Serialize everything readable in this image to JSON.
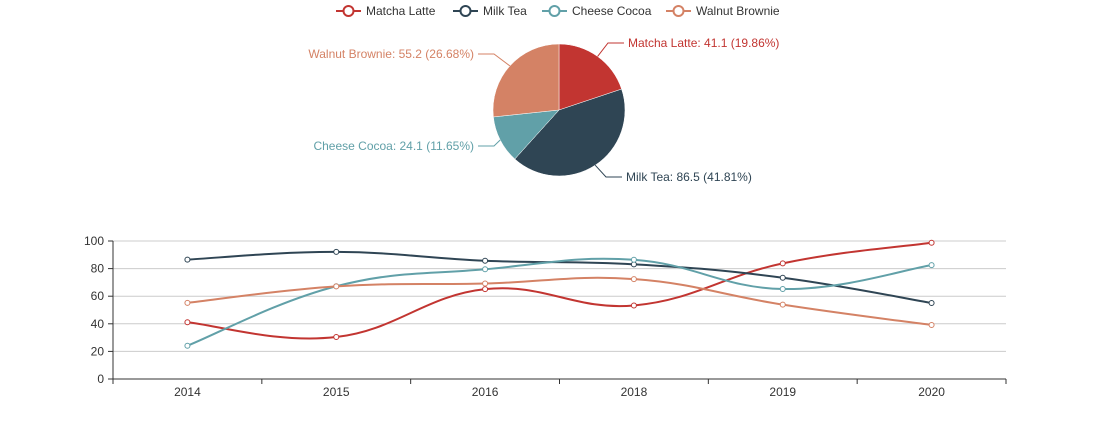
{
  "colors": {
    "Matcha Latte": "#c23531",
    "Milk Tea": "#2f4554",
    "Cheese Cocoa": "#61a0a8",
    "Walnut Brownie": "#d48265",
    "axis": "#333333",
    "grid": "#cccccc",
    "text": "#333333"
  },
  "chart_data": [
    {
      "type": "pie",
      "legend": {
        "placement": "top-center",
        "entries": [
          "Matcha Latte",
          "Milk Tea",
          "Cheese Cocoa",
          "Walnut Brownie"
        ]
      },
      "slices": [
        {
          "name": "Matcha Latte",
          "value": 41.1,
          "percent": 19.86,
          "label": "Matcha Latte: 41.1 (19.86%)"
        },
        {
          "name": "Milk Tea",
          "value": 86.5,
          "percent": 41.81,
          "label": "Milk Tea: 86.5 (41.81%)"
        },
        {
          "name": "Cheese Cocoa",
          "value": 24.1,
          "percent": 11.65,
          "label": "Cheese Cocoa: 24.1 (11.65%)"
        },
        {
          "name": "Walnut Brownie",
          "value": 55.2,
          "percent": 26.68,
          "label": "Walnut Brownie: 55.2 (26.68%)"
        }
      ]
    },
    {
      "type": "line",
      "smooth": true,
      "categories": [
        "2014",
        "2015",
        "2016",
        "2018",
        "2019",
        "2020"
      ],
      "ylim": [
        0,
        100
      ],
      "yticks": [
        0,
        20,
        40,
        60,
        80,
        100
      ],
      "grid": true,
      "series": [
        {
          "name": "Matcha Latte",
          "values": [
            41.1,
            30.4,
            65.1,
            53.3,
            83.8,
            98.7
          ]
        },
        {
          "name": "Milk Tea",
          "values": [
            86.5,
            92.1,
            85.7,
            83.1,
            73.4,
            55.1
          ]
        },
        {
          "name": "Cheese Cocoa",
          "values": [
            24.1,
            67.2,
            79.5,
            86.4,
            65.2,
            82.5
          ]
        },
        {
          "name": "Walnut Brownie",
          "values": [
            55.2,
            67.1,
            69.2,
            72.4,
            53.9,
            39.1
          ]
        }
      ]
    }
  ]
}
